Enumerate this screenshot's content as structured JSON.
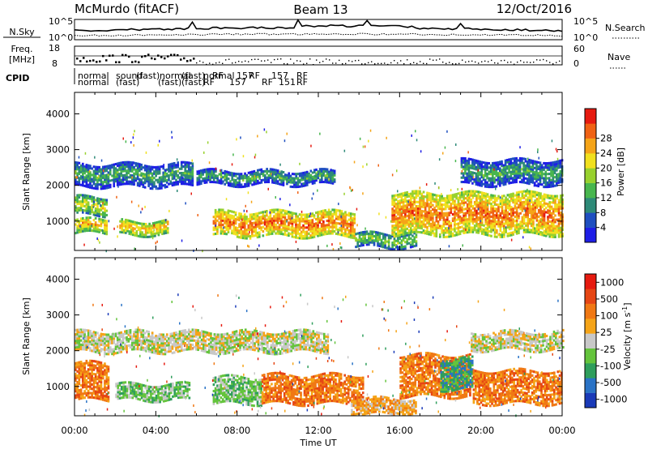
{
  "header": {
    "title": "McMurdo (fitACF)",
    "beam": "Beam 13",
    "date": "12/Oct/2016"
  },
  "top_panels": {
    "nsky_label": "N.Sky",
    "nsky_ticks": [
      "10^5",
      "10^0"
    ],
    "nsearch_label": "N.Search",
    "nsearch_ticks": [
      "10^5",
      "10^0"
    ],
    "freq_label": "Freq.",
    "freq_unit": "[MHz]",
    "freq_ticks": [
      "18",
      "8"
    ],
    "nave_label": "Nave",
    "nave_ticks": [
      "60",
      "0"
    ],
    "cpid_label": "CPID",
    "cpid_row1": [
      "normal",
      "sound",
      "(fast)",
      "normal",
      "(fast)",
      "normal",
      "RF",
      "157",
      "RF",
      "157",
      "RF"
    ],
    "cpid_row2": [
      "normal",
      "(fast)",
      "(fast)",
      "(fast)",
      "RF",
      "157",
      "RF",
      "151",
      "RF"
    ]
  },
  "chart_data": [
    {
      "type": "heatmap",
      "name": "power",
      "ylabel": "Slant Range [km]",
      "yticks": [
        1000,
        2000,
        3000,
        4000
      ],
      "ylim": [
        180,
        4600
      ],
      "xlim": [
        0,
        24
      ],
      "colorbar_label": "Power [dB]",
      "colorbar_ticks": [
        "4",
        "8",
        "12",
        "16",
        "20",
        "24",
        "28"
      ],
      "colors": [
        "#1e1ee6",
        "#1f4fc0",
        "#2e8a78",
        "#48b64e",
        "#98d12e",
        "#f1e01e",
        "#f5a418",
        "#f06214",
        "#e61a10"
      ],
      "bands": [
        {
          "t0": 0.0,
          "t1": 1.6,
          "r0": 640,
          "r1": 1050,
          "level": 6
        },
        {
          "t0": 0.0,
          "t1": 1.6,
          "r0": 1150,
          "r1": 1650,
          "level": 5
        },
        {
          "t0": 0.0,
          "t1": 5.8,
          "r0": 1950,
          "r1": 2600,
          "level": 3
        },
        {
          "t0": 2.2,
          "t1": 4.6,
          "r0": 600,
          "r1": 1000,
          "level": 6
        },
        {
          "t0": 6.8,
          "t1": 13.8,
          "r0": 560,
          "r1": 1250,
          "level": 7
        },
        {
          "t0": 6.0,
          "t1": 12.8,
          "r0": 2000,
          "r1": 2400,
          "level": 3
        },
        {
          "t0": 13.8,
          "t1": 16.8,
          "r0": 250,
          "r1": 650,
          "level": 4
        },
        {
          "t0": 15.6,
          "t1": 24.0,
          "r0": 600,
          "r1": 1750,
          "level": 7
        },
        {
          "t0": 19.0,
          "t1": 24.0,
          "r0": 2000,
          "r1": 2700,
          "level": 3
        }
      ]
    },
    {
      "type": "heatmap",
      "name": "velocity",
      "ylabel": "Slant Range [km]",
      "yticks": [
        1000,
        2000,
        3000,
        4000
      ],
      "ylim": [
        180,
        4600
      ],
      "xlim": [
        0,
        24
      ],
      "colorbar_label": "Velocity [m s^-1]",
      "colorbar_ticks": [
        "1000",
        "500",
        "100",
        "25",
        "-25",
        "-100",
        "-500",
        "-1000"
      ],
      "colors": [
        "#1a3ab8",
        "#2a73c6",
        "#2f9e5c",
        "#64c43c",
        "#c8c8c8",
        "#f5a418",
        "#f07814",
        "#e64614",
        "#e61a10"
      ],
      "bands": [
        {
          "t0": 0.0,
          "t1": 1.7,
          "r0": 600,
          "r1": 1650,
          "level": 6
        },
        {
          "t0": 0.0,
          "t1": 12.5,
          "r0": 1950,
          "r1": 2500,
          "level": 4
        },
        {
          "t0": 2.0,
          "t1": 5.6,
          "r0": 600,
          "r1": 1050,
          "level": 3
        },
        {
          "t0": 6.8,
          "t1": 9.2,
          "r0": 500,
          "r1": 1250,
          "level": 3
        },
        {
          "t0": 9.2,
          "t1": 14.2,
          "r0": 500,
          "r1": 1300,
          "level": 6
        },
        {
          "t0": 13.6,
          "t1": 16.8,
          "r0": 200,
          "r1": 650,
          "level": 5
        },
        {
          "t0": 16.0,
          "t1": 19.5,
          "r0": 700,
          "r1": 1850,
          "level": 6
        },
        {
          "t0": 18.0,
          "t1": 19.6,
          "r0": 900,
          "r1": 1750,
          "level": 2
        },
        {
          "t0": 19.6,
          "t1": 24.0,
          "r0": 500,
          "r1": 1450,
          "level": 6
        },
        {
          "t0": 19.5,
          "t1": 24.0,
          "r0": 2000,
          "r1": 2500,
          "level": 4
        }
      ]
    }
  ],
  "x_axis": {
    "label": "Time UT",
    "ticks": [
      "00:00",
      "04:00",
      "08:00",
      "12:00",
      "16:00",
      "20:00",
      "00:00"
    ]
  }
}
